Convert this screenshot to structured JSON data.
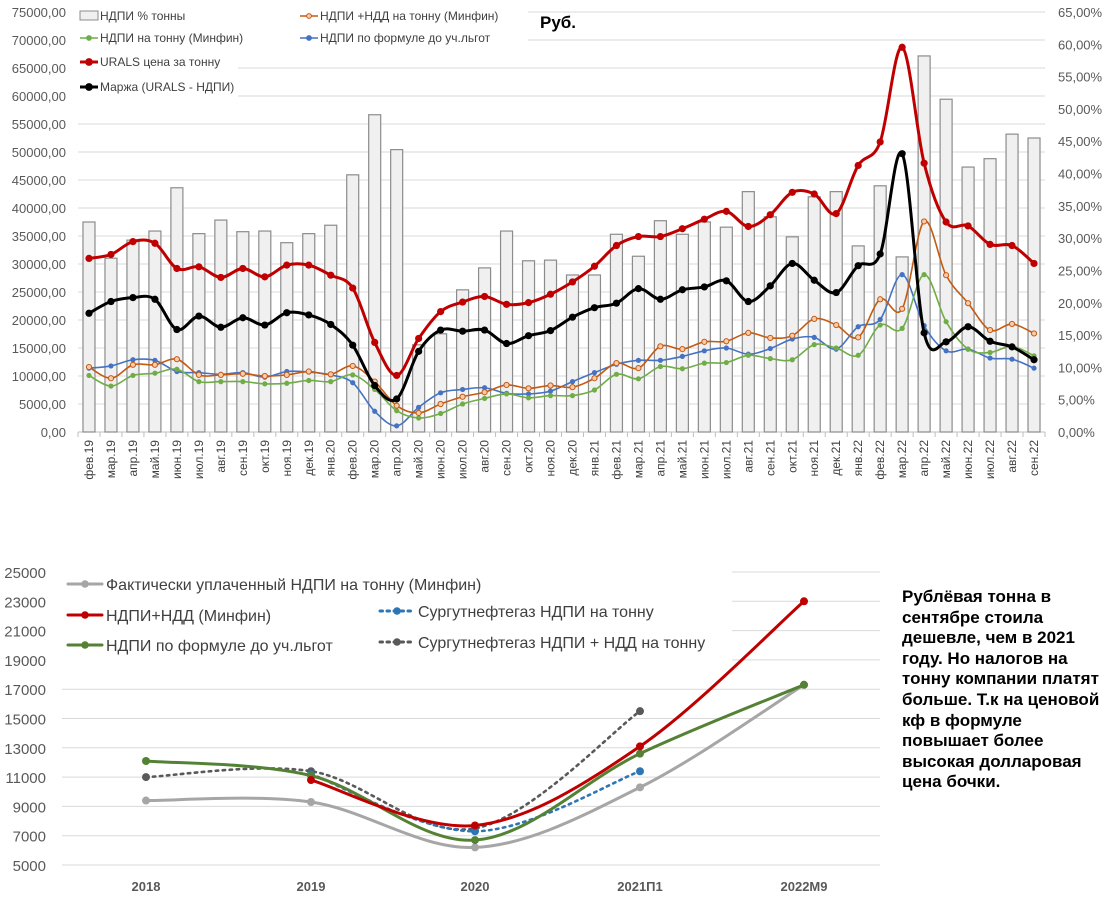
{
  "note": "Рублёвая тонна в сентябре стоила дешевле, чем в 2021 году. Но налогов на тонну компании платят больше. Т.к на ценовой кф в формуле повышает более высокая долларовая цена бочки.",
  "chart_data": [
    {
      "type": "bar+line",
      "title": "Руб.",
      "xlabel": "",
      "ylabel": "",
      "ylim": [
        0,
        75000
      ],
      "y2lim": [
        0,
        0.65
      ],
      "yticks": [
        "0,00",
        "5000,00",
        "10000,00",
        "15000,00",
        "20000,00",
        "25000,00",
        "30000,00",
        "35000,00",
        "40000,00",
        "45000,00",
        "50000,00",
        "55000,00",
        "60000,00",
        "65000,00",
        "70000,00",
        "75000,00"
      ],
      "y2ticks": [
        "0,00%",
        "5,00%",
        "10,00%",
        "15,00%",
        "20,00%",
        "25,00%",
        "30,00%",
        "35,00%",
        "40,00%",
        "45,00%",
        "50,00%",
        "55,00%",
        "60,00%",
        "65,00%"
      ],
      "grid": true,
      "legend": "top-left",
      "categories": [
        "фев.19",
        "мар.19",
        "апр.19",
        "май.19",
        "июн.19",
        "июл.19",
        "авг.19",
        "сен.19",
        "окт.19",
        "ноя.19",
        "дек.19",
        "янв.20",
        "фев.20",
        "мар.20",
        "апр.20",
        "май.20",
        "июн.20",
        "июл.20",
        "авг.20",
        "сен.20",
        "окт.20",
        "ноя.20",
        "дек.20",
        "янв.21",
        "фев.21",
        "мар.21",
        "апр.21",
        "май.21",
        "июн.21",
        "июл.21",
        "авг.21",
        "сен.21",
        "окт.21",
        "ноя.21",
        "дек.21",
        "янв.22",
        "фев.22",
        "мар.22",
        "апр.22",
        "май.22",
        "июн.22",
        "июл.22",
        "авг.22",
        "сен.22"
      ],
      "bars": {
        "name": "НДПИ % тонны",
        "axis": "right",
        "color": "#f0f0f0",
        "values": [
          0.325,
          0.269,
          0.297,
          0.311,
          0.378,
          0.307,
          0.328,
          0.31,
          0.311,
          0.293,
          0.307,
          0.32,
          0.398,
          0.491,
          0.437,
          0.135,
          0.152,
          0.22,
          0.254,
          0.311,
          0.265,
          0.266,
          0.243,
          0.243,
          0.306,
          0.272,
          0.327,
          0.306,
          0.325,
          0.317,
          0.372,
          0.333,
          0.302,
          0.364,
          0.372,
          0.288,
          0.381,
          0.271,
          0.582,
          0.515,
          0.41,
          0.423,
          0.461,
          0.455
        ]
      },
      "series": [
        {
          "name": "URALS цена за тонну",
          "color": "#c00000",
          "width": 3,
          "values": [
            31000,
            31700,
            34000,
            33700,
            29200,
            29500,
            27600,
            29200,
            27700,
            29800,
            29800,
            28000,
            25700,
            16000,
            10100,
            16700,
            21500,
            23200,
            24200,
            22800,
            23100,
            24600,
            26800,
            29600,
            33300,
            34900,
            34900,
            36300,
            38000,
            39400,
            36700,
            38800,
            42800,
            42500,
            39000,
            47600,
            51800,
            68700,
            48000,
            37500,
            36800,
            33500,
            33300,
            30100
          ]
        },
        {
          "name": "Маржа (URALS - НДПИ)",
          "color": "#000000",
          "width": 3,
          "values": [
            21200,
            23300,
            24000,
            23700,
            18300,
            20700,
            18700,
            20400,
            19100,
            21300,
            20900,
            19200,
            15500,
            8300,
            5900,
            14400,
            18200,
            18000,
            18200,
            15800,
            17200,
            18100,
            20500,
            22200,
            23000,
            25600,
            23700,
            25400,
            25900,
            27000,
            23300,
            26100,
            30100,
            27100,
            24900,
            29700,
            31800,
            49700,
            17700,
            16100,
            18800,
            16200,
            15200,
            12900
          ]
        },
        {
          "name": "НДПИ +НДД на тонну (Минфин)",
          "color": "#c55a11",
          "width": 1.6,
          "marker": "hollow",
          "values": [
            11600,
            9600,
            12000,
            12000,
            13000,
            10200,
            10200,
            10400,
            10000,
            10200,
            10800,
            10300,
            11800,
            9000,
            4700,
            3400,
            5000,
            6300,
            7100,
            8400,
            7800,
            8300,
            8000,
            9600,
            12300,
            11400,
            15300,
            14800,
            16100,
            16200,
            17700,
            16800,
            17200,
            20200,
            19100,
            16900,
            23700,
            22000,
            37600,
            28000,
            23000,
            18200,
            19300,
            17600
          ]
        },
        {
          "name": "НДПИ на тонну (Минфин)",
          "color": "#70ad47",
          "width": 1.6,
          "values": [
            10100,
            8200,
            10100,
            10500,
            11200,
            9000,
            9000,
            9000,
            8600,
            8700,
            9200,
            9000,
            10200,
            7600,
            3800,
            2500,
            3300,
            5000,
            6000,
            6800,
            6100,
            6500,
            6500,
            7500,
            10300,
            9500,
            11700,
            11300,
            12300,
            12400,
            13700,
            13100,
            12900,
            15600,
            15000,
            13700,
            19100,
            18500,
            28100,
            19700,
            14800,
            14200,
            15300,
            13600
          ]
        },
        {
          "name": "НДПИ по формуле до уч.льгот",
          "color": "#4472c4",
          "width": 1.6,
          "values": [
            11400,
            11800,
            12900,
            12800,
            10800,
            10600,
            10300,
            10600,
            9800,
            10800,
            10700,
            10200,
            8800,
            3700,
            1100,
            4400,
            7000,
            7600,
            7900,
            6900,
            6800,
            7300,
            9000,
            10600,
            12100,
            12800,
            12800,
            13500,
            14500,
            15000,
            13900,
            14900,
            16600,
            16900,
            14800,
            18800,
            20100,
            28100,
            19000,
            14500,
            14800,
            13200,
            13000,
            11400
          ]
        }
      ]
    },
    {
      "type": "line",
      "title": "",
      "xlabel": "",
      "ylabel": "",
      "ylim": [
        5000,
        25000
      ],
      "yticks": [
        "5000",
        "7000",
        "9000",
        "11000",
        "13000",
        "15000",
        "17000",
        "19000",
        "21000",
        "23000",
        "25000"
      ],
      "grid": true,
      "legend": "top-left",
      "categories": [
        "2018",
        "2019",
        "2020",
        "2021П1",
        "2022М9"
      ],
      "series": [
        {
          "name": "Фактически уплаченный НДПИ на тонну (Минфин)",
          "color": "#a6a6a6",
          "style": "solid",
          "values": [
            9400,
            9300,
            6200,
            10300,
            17300
          ]
        },
        {
          "name": "НДПИ+НДД (Минфин)",
          "color": "#c00000",
          "style": "solid",
          "values": [
            null,
            10800,
            7700,
            13100,
            23000
          ]
        },
        {
          "name": "НДПИ по формуле до уч.льгот",
          "color": "#548235",
          "style": "solid",
          "values": [
            12100,
            11100,
            6700,
            12600,
            17300
          ]
        },
        {
          "name": "Сургутнефтегаз НДПИ на тонну",
          "color": "#2e75b6",
          "style": "dotted",
          "values": [
            null,
            11200,
            7300,
            11400,
            null
          ]
        },
        {
          "name": "Сургутнефтегаз НДПИ + НДД на тонну",
          "color": "#595959",
          "style": "dotted",
          "values": [
            11000,
            11400,
            7500,
            15500,
            null
          ]
        }
      ]
    }
  ]
}
